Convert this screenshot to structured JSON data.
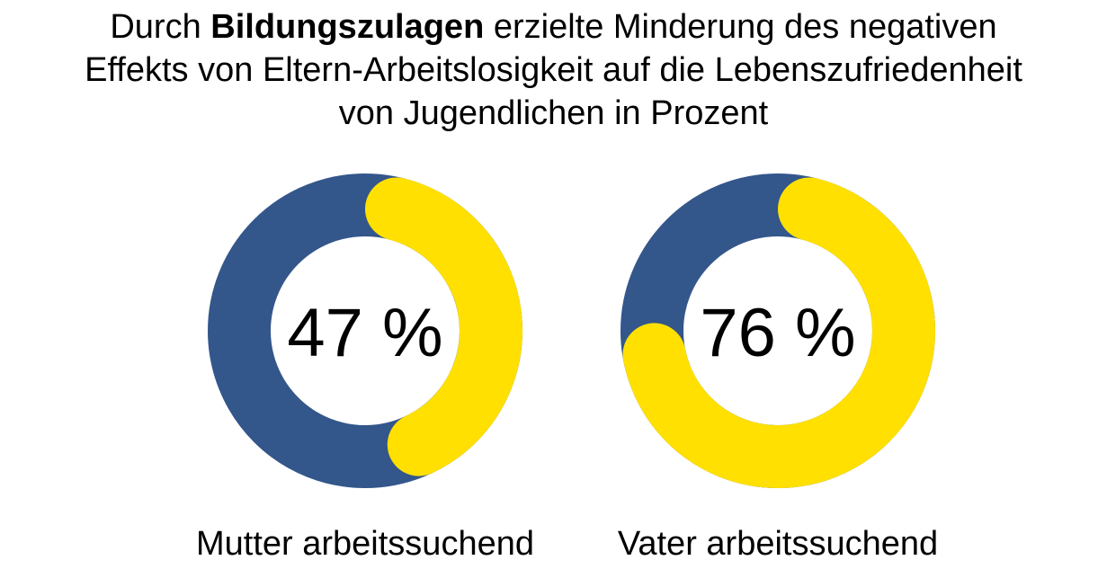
{
  "title": {
    "line1_pre": "Durch ",
    "line1_bold": "Bildungszulagen",
    "line1_post": " erzielte Minderung des negativen",
    "line2": "Effekts von Eltern-Arbeitslosigkeit auf die Lebenszufriedenheit",
    "line3": "von Jugendlichen in Prozent"
  },
  "colors": {
    "accent": "#FFE000",
    "base": "#33568B",
    "background": "#FFFFFF"
  },
  "chart_data": [
    {
      "type": "pie",
      "variant": "donut",
      "title": "Mutter arbeitssuchend",
      "value_percent": 47,
      "center_label": "47 %",
      "caption": "Mutter arbeitssuchend"
    },
    {
      "type": "pie",
      "variant": "donut",
      "title": "Vater arbeitssuchend",
      "value_percent": 76,
      "center_label": "76 %",
      "caption": "Vater arbeitssuchend"
    }
  ]
}
